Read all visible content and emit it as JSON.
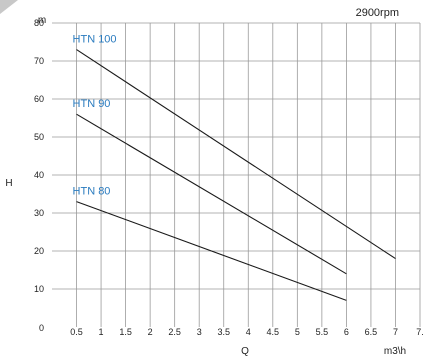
{
  "chart_data": {
    "type": "line",
    "title": "",
    "annotation": "2900rpm",
    "ylabel": "H",
    "yunit": "m",
    "xlabel": "Q",
    "xunit": "m3\\h",
    "x_ticks": [
      "0.5",
      "1",
      "1.5",
      "2",
      "2.5",
      "3",
      "3.5",
      "4",
      "4.5",
      "5",
      "5.5",
      "6",
      "6.5",
      "7",
      "7."
    ],
    "y_ticks": [
      "0",
      "10",
      "20",
      "30",
      "40",
      "50",
      "60",
      "70",
      "80"
    ],
    "xlim": [
      0,
      7.5
    ],
    "ylim": [
      0,
      80
    ],
    "grid": true,
    "colors": {
      "line": "#1a1a1a",
      "grid": "#9a9a9a",
      "series_label": "#2a7bbf"
    },
    "series": [
      {
        "name": "HTN 100",
        "x": [
          0.5,
          7
        ],
        "y": [
          73,
          18
        ]
      },
      {
        "name": "HTN 90",
        "x": [
          0.5,
          6
        ],
        "y": [
          56,
          14
        ]
      },
      {
        "name": "HTN 80",
        "x": [
          0.5,
          6
        ],
        "y": [
          33,
          7
        ]
      }
    ]
  }
}
